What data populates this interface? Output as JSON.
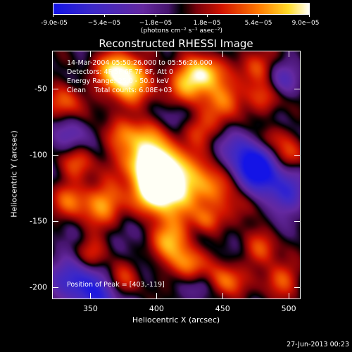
{
  "colorbar": {
    "tick_labels": [
      "-9.0e-05",
      "−5.4e−05",
      "−1.8e−05",
      "1.8e−05",
      "5.4e−05",
      "9.0e−05"
    ],
    "units": "(photons cm⁻² s⁻¹ asec⁻²)",
    "range": [
      -9e-05,
      9e-05
    ],
    "colormap": "blue-purple-red-yellow-white"
  },
  "title": "Reconstructed RHESSI Image",
  "info": {
    "time_range": "14-Mar-2004 05:50:26.000 to 05:56:26.000",
    "detectors": "Detectors: 4F 5F 6F 7F 8F, Att 0",
    "energy": "Energy Range: 25.0 - 50.0 keV",
    "clean": "Clean    Total counts: 6.08E+03",
    "peak": "Position of Peak = [403,-119]"
  },
  "axes": {
    "xlabel": "Heliocentric X (arcsec)",
    "ylabel": "Heliocentric Y (arcsec)",
    "xticks": [
      "350",
      "400",
      "450",
      "500"
    ],
    "yticks": [
      "-50",
      "-100",
      "-150",
      "-200"
    ],
    "xlim": [
      321,
      509
    ],
    "ylim": [
      -209,
      -21
    ]
  },
  "footer": {
    "datestamp": "27-Jun-2013 00:23"
  }
}
